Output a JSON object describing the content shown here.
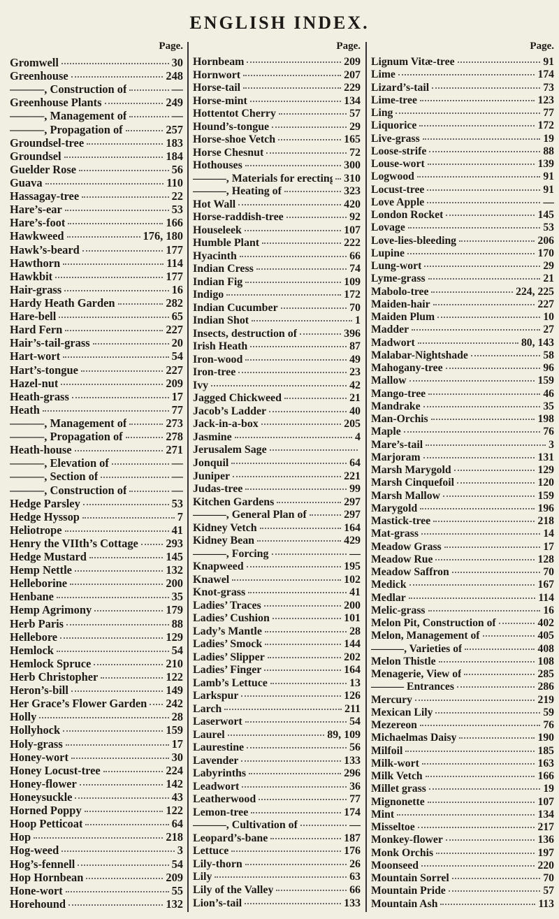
{
  "header": {
    "title": "ENGLISH INDEX."
  },
  "columns": [
    {
      "heading": "Page.",
      "entries": [
        {
          "name": "Gromwell",
          "page": "30"
        },
        {
          "name": "Greenhouse",
          "page": "248"
        },
        {
          "name": "———, Construction of",
          "page": "—"
        },
        {
          "name": "Greenhouse Plants",
          "page": "249"
        },
        {
          "name": "———, Management of",
          "page": "—"
        },
        {
          "name": "———, Propagation of",
          "page": "257"
        },
        {
          "name": "Groundsel-tree",
          "page": "183"
        },
        {
          "name": "Groundsel",
          "page": "184"
        },
        {
          "name": "Guelder Rose",
          "page": "56"
        },
        {
          "name": "Guava",
          "page": "110"
        },
        {
          "name": "Hassagay-tree",
          "page": "22"
        },
        {
          "name": "Hare’s-ear",
          "page": "53"
        },
        {
          "name": "Hare’s-foot",
          "page": "166"
        },
        {
          "name": "Hawkweed",
          "page": "176, 180"
        },
        {
          "name": "Hawk’s-beard",
          "page": "177"
        },
        {
          "name": "Hawthorn",
          "page": "114"
        },
        {
          "name": "Hawkbit",
          "page": "177"
        },
        {
          "name": "Hair-grass",
          "page": "16"
        },
        {
          "name": "Hardy Heath Garden",
          "page": "282"
        },
        {
          "name": "Hare-bell",
          "page": "65"
        },
        {
          "name": "Hard Fern",
          "page": "227"
        },
        {
          "name": "Hair’s-tail-grass",
          "page": "20"
        },
        {
          "name": "Hart-wort",
          "page": "54"
        },
        {
          "name": "Hart’s-tongue",
          "page": "227"
        },
        {
          "name": "Hazel-nut",
          "page": "209"
        },
        {
          "name": "Heath-grass",
          "page": "17"
        },
        {
          "name": "Heath",
          "page": "77"
        },
        {
          "name": "———, Management of",
          "page": "273"
        },
        {
          "name": "———, Propagation of",
          "page": "278"
        },
        {
          "name": "Heath-house",
          "page": "271"
        },
        {
          "name": "———, Elevation of",
          "page": "—"
        },
        {
          "name": "———, Section of",
          "page": "—"
        },
        {
          "name": "———, Construction of",
          "page": "—"
        },
        {
          "name": "Hedge Parsley",
          "page": "53"
        },
        {
          "name": "Hedge Hyssop",
          "page": "7"
        },
        {
          "name": "Heliotrope",
          "page": "41"
        },
        {
          "name": "Henry the VIIth’s Cottage",
          "page": "293"
        },
        {
          "name": "Hedge Mustard",
          "page": "145"
        },
        {
          "name": "Hemp Nettle",
          "page": "132"
        },
        {
          "name": "Helleborine",
          "page": "200"
        },
        {
          "name": "Henbane",
          "page": "35"
        },
        {
          "name": "Hemp Agrimony",
          "page": "179"
        },
        {
          "name": "Herb Paris",
          "page": "88"
        },
        {
          "name": "Hellebore",
          "page": "129"
        },
        {
          "name": "Hemlock",
          "page": "54"
        },
        {
          "name": "Hemlock Spruce",
          "page": "210"
        },
        {
          "name": "Herb Christopher",
          "page": "122"
        },
        {
          "name": "Heron’s-bill",
          "page": "149"
        },
        {
          "name": "Her Grace’s Flower Garden",
          "page": "242"
        },
        {
          "name": "Holly",
          "page": "28"
        },
        {
          "name": "Hollyhock",
          "page": "159"
        },
        {
          "name": "Holy-grass",
          "page": "17"
        },
        {
          "name": "Honey-wort",
          "page": "30"
        },
        {
          "name": "Honey Locust-tree",
          "page": "224"
        },
        {
          "name": "Honey-flower",
          "page": "142"
        },
        {
          "name": "Honeysuckle",
          "page": "43"
        },
        {
          "name": "Horned Poppy",
          "page": "122"
        },
        {
          "name": "Hoop Petticoat",
          "page": "64"
        },
        {
          "name": "Hop",
          "page": "218"
        },
        {
          "name": "Hog-weed",
          "page": "3"
        },
        {
          "name": "Hog’s-fennell",
          "page": "54"
        },
        {
          "name": "Hop Hornbean",
          "page": "209"
        },
        {
          "name": "Hone-wort",
          "page": "55"
        },
        {
          "name": "Horehound",
          "page": "132"
        }
      ]
    },
    {
      "heading": "Page.",
      "entries": [
        {
          "name": "Hornbeam",
          "page": "209"
        },
        {
          "name": "Hornwort",
          "page": "207"
        },
        {
          "name": "Horse-tail",
          "page": "229"
        },
        {
          "name": "Horse-mint",
          "page": "134"
        },
        {
          "name": "Hottentot Cherry",
          "page": "57"
        },
        {
          "name": "Hound’s-tongue",
          "page": "29"
        },
        {
          "name": "Horse-shoe Vetch",
          "page": "165"
        },
        {
          "name": "Horse Chesnut",
          "page": "72"
        },
        {
          "name": "Hothouses",
          "page": "300"
        },
        {
          "name": "———, Materials for erecting of",
          "page": "310"
        },
        {
          "name": "———, Heating of",
          "page": "323"
        },
        {
          "name": "Hot Wall",
          "page": "420"
        },
        {
          "name": "Horse-raddish-tree",
          "page": "92"
        },
        {
          "name": "Houseleek",
          "page": "107"
        },
        {
          "name": "Humble Plant",
          "page": "222"
        },
        {
          "name": "Hyacinth",
          "page": "66"
        },
        {
          "name": "Indian Cress",
          "page": "74"
        },
        {
          "name": "Indian Fig",
          "page": "109"
        },
        {
          "name": "Indigo",
          "page": "172"
        },
        {
          "name": "Indian Cucumber",
          "page": "70"
        },
        {
          "name": "Indian Shot",
          "page": "1"
        },
        {
          "name": "Insects, destruction of",
          "page": "396"
        },
        {
          "name": "Irish Heath",
          "page": "87"
        },
        {
          "name": "Iron-wood",
          "page": "49"
        },
        {
          "name": "Iron-tree",
          "page": "23"
        },
        {
          "name": "Ivy",
          "page": "42"
        },
        {
          "name": "Jagged Chickweed",
          "page": "21"
        },
        {
          "name": "Jacob’s Ladder",
          "page": "40"
        },
        {
          "name": "Jack-in-a-box",
          "page": "205"
        },
        {
          "name": "Jasmine",
          "page": "4"
        },
        {
          "name": "Jerusalem Sage"
        },
        {
          "name": "Jonquil",
          "page": "64"
        },
        {
          "name": "Juniper",
          "page": "221"
        },
        {
          "name": "Judas-tree",
          "page": "99"
        },
        {
          "name": "Kitchen Gardens",
          "page": "297"
        },
        {
          "name": "———, General Plan of",
          "page": "297"
        },
        {
          "name": "Kidney Vetch",
          "page": "164"
        },
        {
          "name": "Kidney Bean",
          "page": "429"
        },
        {
          "name": "———, Forcing",
          "page": "—"
        },
        {
          "name": "Knapweed",
          "page": "195"
        },
        {
          "name": "Knawel",
          "page": "102"
        },
        {
          "name": "Knot-grass",
          "page": "41"
        },
        {
          "name": "Ladies’ Traces",
          "page": "200"
        },
        {
          "name": "Ladies’ Cushion",
          "page": "101"
        },
        {
          "name": "Lady’s Mantle",
          "page": "28"
        },
        {
          "name": "Ladies’ Smock",
          "page": "144"
        },
        {
          "name": "Ladies’ Slipper",
          "page": "202"
        },
        {
          "name": "Ladies’ Finger",
          "page": "164"
        },
        {
          "name": "Lamb’s Lettuce",
          "page": "13"
        },
        {
          "name": "Larkspur",
          "page": "126"
        },
        {
          "name": "Larch",
          "page": "211"
        },
        {
          "name": "Laserwort",
          "page": "54"
        },
        {
          "name": "Laurel",
          "page": "89, 109"
        },
        {
          "name": "Laurestine",
          "page": "56"
        },
        {
          "name": "Lavender",
          "page": "133"
        },
        {
          "name": "Labyrinths",
          "page": "296"
        },
        {
          "name": "Leadwort",
          "page": "36"
        },
        {
          "name": "Leatherwood",
          "page": "77"
        },
        {
          "name": "Lemon-tree",
          "page": "174"
        },
        {
          "name": "———, Cultivation of",
          "page": "—"
        },
        {
          "name": "Leopard’s-bane",
          "page": "187"
        },
        {
          "name": "Lettuce",
          "page": "176"
        },
        {
          "name": "Lily-thorn",
          "page": "26"
        },
        {
          "name": "Lily",
          "page": "63"
        },
        {
          "name": "Lily of the Valley",
          "page": "66"
        },
        {
          "name": "Lion’s-tail",
          "page": "133"
        }
      ]
    },
    {
      "heading": "Page.",
      "entries": [
        {
          "name": "Lignum Vitæ-tree",
          "page": "91"
        },
        {
          "name": "Lime",
          "page": "174"
        },
        {
          "name": "Lizard’s-tail",
          "page": "73"
        },
        {
          "name": "Lime-tree",
          "page": "123"
        },
        {
          "name": "Ling",
          "page": "77"
        },
        {
          "name": "Liquorice",
          "page": "172"
        },
        {
          "name": "Live-grass",
          "page": "19"
        },
        {
          "name": "Loose-strife",
          "page": "88"
        },
        {
          "name": "Louse-wort",
          "page": "139"
        },
        {
          "name": "Logwood",
          "page": "91"
        },
        {
          "name": "Locust-tree",
          "page": "91"
        },
        {
          "name": "Love Apple",
          "page": "—"
        },
        {
          "name": "London Rocket",
          "page": "145"
        },
        {
          "name": "Lovage",
          "page": "53"
        },
        {
          "name": "Love-lies-bleeding",
          "page": "206"
        },
        {
          "name": "Lupine",
          "page": "170"
        },
        {
          "name": "Lung-wort",
          "page": "29"
        },
        {
          "name": "Lyme-grass",
          "page": "21"
        },
        {
          "name": "Mabolo-tree",
          "page": "224, 225"
        },
        {
          "name": "Maiden-hair",
          "page": "227"
        },
        {
          "name": "Maiden Plum",
          "page": "10"
        },
        {
          "name": "Madder",
          "page": "27"
        },
        {
          "name": "Madwort",
          "page": "80, 143"
        },
        {
          "name": "Malabar-Nightshade",
          "page": "58"
        },
        {
          "name": "Mahogany-tree",
          "page": "96"
        },
        {
          "name": "Mallow",
          "page": "159"
        },
        {
          "name": "Mango-tree",
          "page": "46"
        },
        {
          "name": "Mandrake",
          "page": "35"
        },
        {
          "name": "Man-Orchis",
          "page": "198"
        },
        {
          "name": "Maple",
          "page": "76"
        },
        {
          "name": "Mare’s-tail",
          "page": "3"
        },
        {
          "name": "Marjoram",
          "page": "131"
        },
        {
          "name": "Marsh Marygold",
          "page": "129"
        },
        {
          "name": "Marsh Cinquefoil",
          "page": "120"
        },
        {
          "name": "Marsh Mallow",
          "page": "159"
        },
        {
          "name": "Marygold",
          "page": "196"
        },
        {
          "name": "Mastick-tree",
          "page": "218"
        },
        {
          "name": "Mat-grass",
          "page": "14"
        },
        {
          "name": "Meadow Grass",
          "page": "17"
        },
        {
          "name": "Meadow Rue",
          "page": "128"
        },
        {
          "name": "Meadow Saffron",
          "page": "70"
        },
        {
          "name": "Medick",
          "page": "167"
        },
        {
          "name": "Medlar",
          "page": "114"
        },
        {
          "name": "Melic-grass",
          "page": "16"
        },
        {
          "name": "Melon Pit, Construction of",
          "page": "402"
        },
        {
          "name": "Melon, Management of",
          "page": "405"
        },
        {
          "name": "———, Varieties of",
          "page": "408"
        },
        {
          "name": "Melon Thistle",
          "page": "108"
        },
        {
          "name": "Menagerie, View of",
          "page": "285"
        },
        {
          "name": "——— Entrances",
          "page": "286"
        },
        {
          "name": "Mercury",
          "page": "219"
        },
        {
          "name": "Mexican Lily",
          "page": "59"
        },
        {
          "name": "Mezereon",
          "page": "76"
        },
        {
          "name": "Michaelmas Daisy",
          "page": "190"
        },
        {
          "name": "Milfoil",
          "page": "185"
        },
        {
          "name": "Milk-wort",
          "page": "163"
        },
        {
          "name": "Milk Vetch",
          "page": "166"
        },
        {
          "name": "Millet grass",
          "page": "19"
        },
        {
          "name": "Mignonette",
          "page": "107"
        },
        {
          "name": "Mint",
          "page": "134"
        },
        {
          "name": "Misseltoe",
          "page": "217"
        },
        {
          "name": "Monkey-flower",
          "page": "136"
        },
        {
          "name": "Monk Orchis",
          "page": "197"
        },
        {
          "name": "Moonseed",
          "page": "220"
        },
        {
          "name": "Mountain Sorrel",
          "page": "70"
        },
        {
          "name": "Mountain Pride",
          "page": "57"
        },
        {
          "name": "Mountain Ash",
          "page": "113"
        }
      ]
    }
  ]
}
